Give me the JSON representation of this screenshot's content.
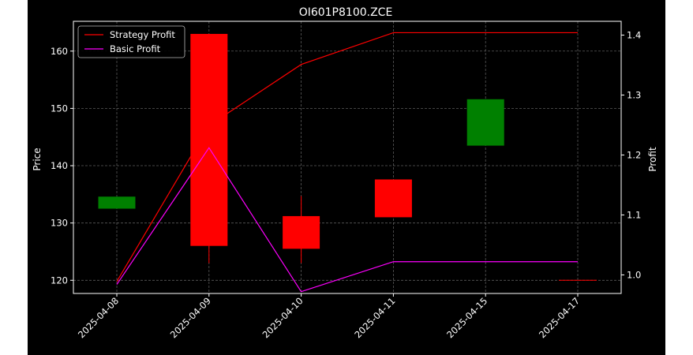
{
  "chart_data": {
    "type": "candlestick",
    "title": "OI601P8100.ZCE",
    "xlabel": "",
    "ylabel_left": "Price",
    "ylabel_right": "Profit",
    "categories": [
      "2025-04-08",
      "2025-04-09",
      "2025-04-10",
      "2025-04-11",
      "2025-04-15",
      "2025-04-17"
    ],
    "ylim_left": [
      117.7,
      165.2
    ],
    "ylim_right": [
      0.969,
      1.423
    ],
    "yticks_left": [
      120,
      130,
      140,
      150,
      160
    ],
    "yticks_right": [
      1.0,
      1.1,
      1.2,
      1.3,
      1.4
    ],
    "grid": true,
    "legend_position": "top-left",
    "candles": [
      {
        "date": "2025-04-08",
        "open": 132.5,
        "close": 134.6,
        "high": 134.6,
        "low": 132.5,
        "color": "#008000"
      },
      {
        "date": "2025-04-09",
        "open": 163.0,
        "close": 126.0,
        "high": 163.0,
        "low": 123.0,
        "color": "#ff0000"
      },
      {
        "date": "2025-04-10",
        "open": 131.2,
        "close": 125.5,
        "high": 134.7,
        "low": 123.0,
        "color": "#ff0000"
      },
      {
        "date": "2025-04-11",
        "open": 137.6,
        "close": 131.0,
        "high": 137.6,
        "low": 131.0,
        "color": "#ff0000"
      },
      {
        "date": "2025-04-15",
        "open": 143.5,
        "close": 151.6,
        "high": 151.6,
        "low": 143.5,
        "color": "#008000"
      },
      {
        "date": "2025-04-17",
        "open": 120.0,
        "close": 120.0,
        "high": 120.0,
        "low": 120.0,
        "color": "#ff0000"
      }
    ],
    "series": [
      {
        "name": "Strategy Profit",
        "color": "#ff0000",
        "axis": "right",
        "values": [
          0.989,
          1.249,
          1.351,
          1.404,
          1.404,
          1.404
        ]
      },
      {
        "name": "Basic Profit",
        "color": "#ff00ff",
        "axis": "right",
        "values": [
          0.984,
          1.212,
          0.972,
          1.022,
          1.022,
          1.022
        ]
      }
    ]
  },
  "colors": {
    "background": "#000000",
    "axes": "#ffffff",
    "grid": "#808080"
  }
}
